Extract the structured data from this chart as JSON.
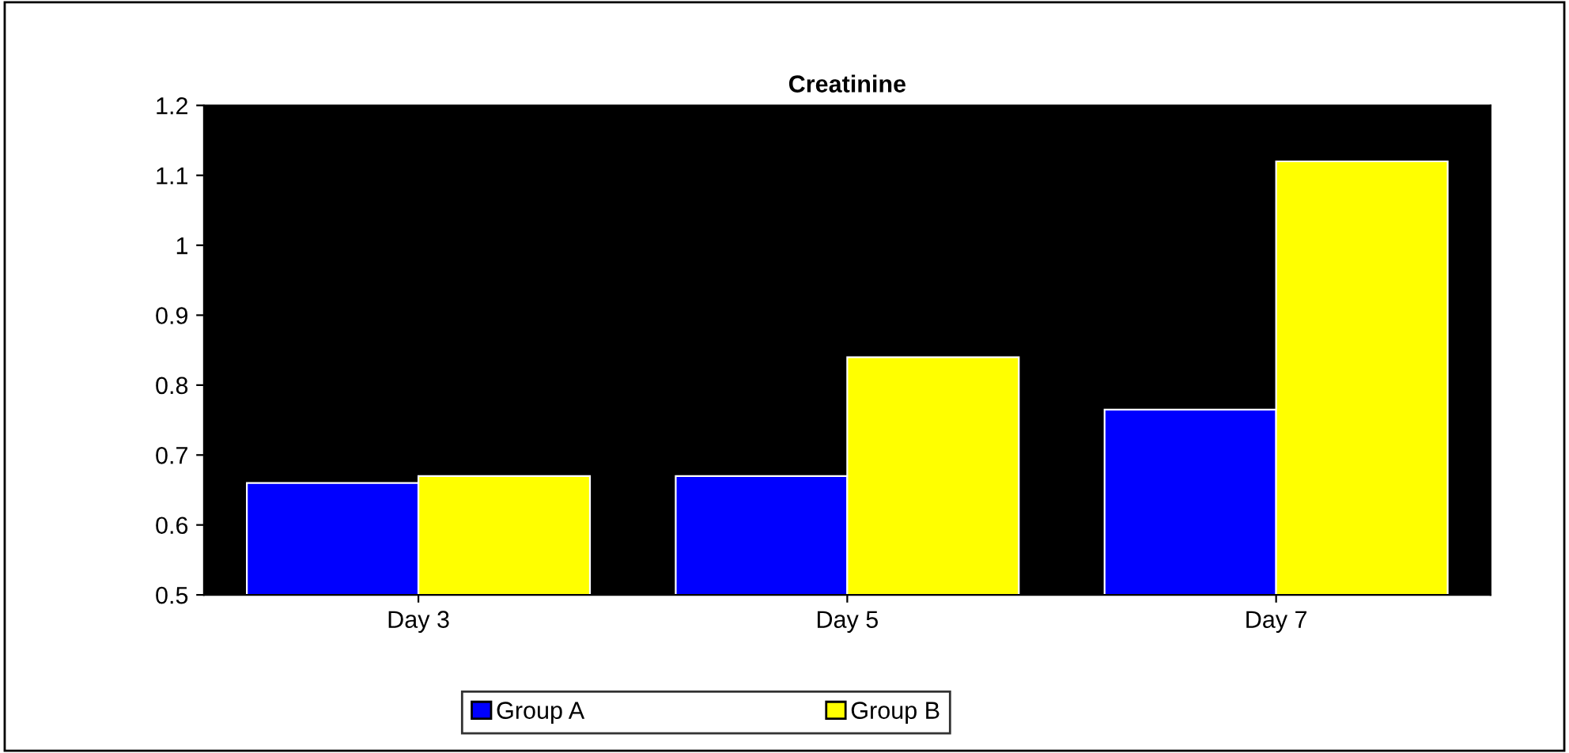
{
  "chart_data": {
    "type": "bar",
    "title": "Creatinine",
    "categories": [
      "Day 3",
      "Day 5",
      "Day 7"
    ],
    "series": [
      {
        "name": "Group A",
        "color": "#0000ff",
        "values": [
          0.66,
          0.67,
          0.765
        ]
      },
      {
        "name": "Group B",
        "color": "#ffff00",
        "values": [
          0.67,
          0.84,
          1.12
        ]
      }
    ],
    "ylim": [
      0.5,
      1.2
    ],
    "yticks": [
      0.5,
      0.6,
      0.7,
      0.8,
      0.9,
      1,
      1.1,
      1.2
    ],
    "grid": false,
    "legend": "bottom"
  }
}
